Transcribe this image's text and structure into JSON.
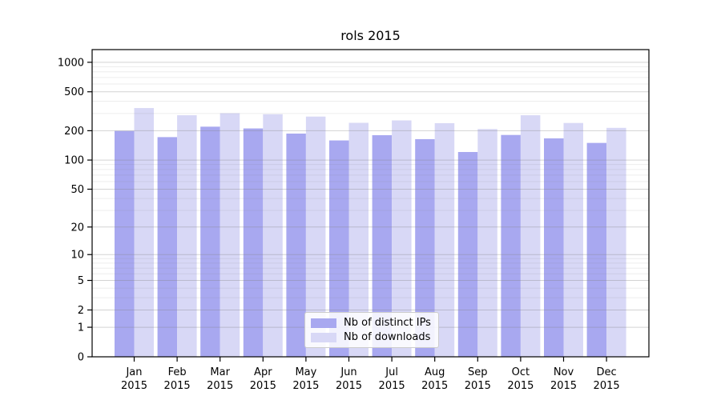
{
  "chart_data": {
    "type": "bar",
    "title": "rols 2015",
    "scale": "log1p-symlog",
    "categories": [
      "Jan",
      "Feb",
      "Mar",
      "Apr",
      "May",
      "Jun",
      "Jul",
      "Aug",
      "Sep",
      "Oct",
      "Nov",
      "Dec"
    ],
    "x_year_label": "2015",
    "series": [
      {
        "name": "Nb of distinct IPs",
        "color": "#a8a8f0",
        "values": [
          199,
          172,
          220,
          211,
          187,
          159,
          180,
          164,
          121,
          181,
          167,
          150
        ]
      },
      {
        "name": "Nb of downloads",
        "color": "#d8d8f6",
        "values": [
          341,
          288,
          302,
          295,
          279,
          241,
          255,
          239,
          208,
          288,
          240,
          214
        ]
      }
    ],
    "yticks": [
      0,
      1,
      2,
      5,
      10,
      20,
      50,
      100,
      200,
      500,
      1000
    ],
    "y_minor_gridlines": [
      3,
      4,
      6,
      7,
      8,
      9,
      30,
      40,
      60,
      70,
      80,
      90,
      300,
      400,
      600,
      700,
      800,
      900
    ],
    "ylim": [
      0,
      1600
    ],
    "grid": "on",
    "legend_position": "lower center",
    "colors": {
      "spine": "#000000",
      "grid_major": "#c8c8c8",
      "grid_minor": "#ececec",
      "text": "#000000"
    }
  }
}
